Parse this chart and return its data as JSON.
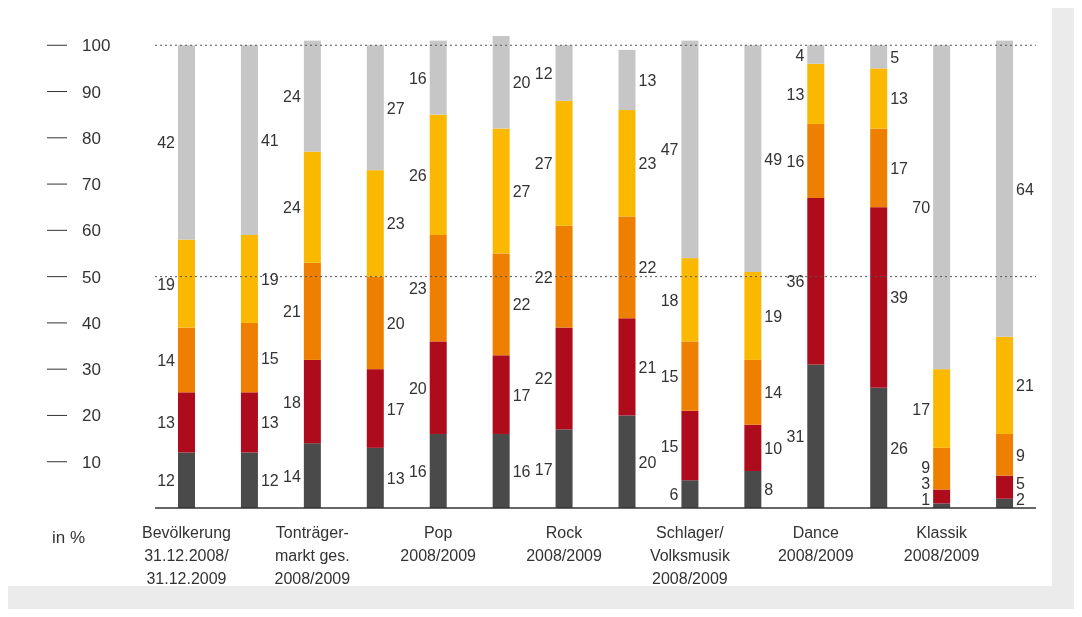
{
  "chart_data": {
    "type": "bar",
    "stacked": true,
    "ylabel": "in %",
    "categories": [
      "Bevölkerung\n31.12.2008/\n31.12.2009",
      null,
      "Tonträger-\nmarkt ges.\n2008/2009",
      null,
      "Pop\n2008/2009",
      null,
      "Rock\n2008/2009",
      null,
      "Schlager/\nVolksmusik\n2008/2009",
      null,
      "Dance\n2008/2009",
      null,
      "Klassik\n2008/2009",
      null
    ],
    "series": [
      {
        "color": "#4a4a4b",
        "values": [
          12,
          12,
          14,
          13,
          16,
          16,
          17,
          20,
          6,
          8,
          31,
          26,
          1,
          2
        ]
      },
      {
        "color": "#ae0b1c",
        "values": [
          13,
          13,
          18,
          17,
          20,
          17,
          22,
          21,
          15,
          10,
          36,
          39,
          3,
          5
        ]
      },
      {
        "color": "#ee7f00",
        "values": [
          14,
          15,
          21,
          20,
          23,
          22,
          22,
          22,
          15,
          14,
          16,
          17,
          9,
          9
        ]
      },
      {
        "color": "#fbb800",
        "values": [
          19,
          19,
          24,
          23,
          26,
          27,
          27,
          23,
          18,
          19,
          13,
          13,
          17,
          21
        ]
      },
      {
        "color": "#c6c6c7",
        "values": [
          42,
          41,
          24,
          27,
          16,
          20,
          12,
          13,
          47,
          49,
          4,
          5,
          70,
          64
        ]
      }
    ],
    "ylim": [
      0,
      102
    ],
    "yticks": [
      10,
      20,
      30,
      40,
      50,
      60,
      70,
      80,
      90,
      100
    ],
    "ref_lines": [
      {
        "axis": "y",
        "value": 50,
        "color": "#555555",
        "line_style": "dotted"
      },
      {
        "axis": "y",
        "value": 100,
        "color": "#555555",
        "line_style": "dotted"
      }
    ],
    "data_labels": true,
    "grid": false,
    "legend": false
  }
}
